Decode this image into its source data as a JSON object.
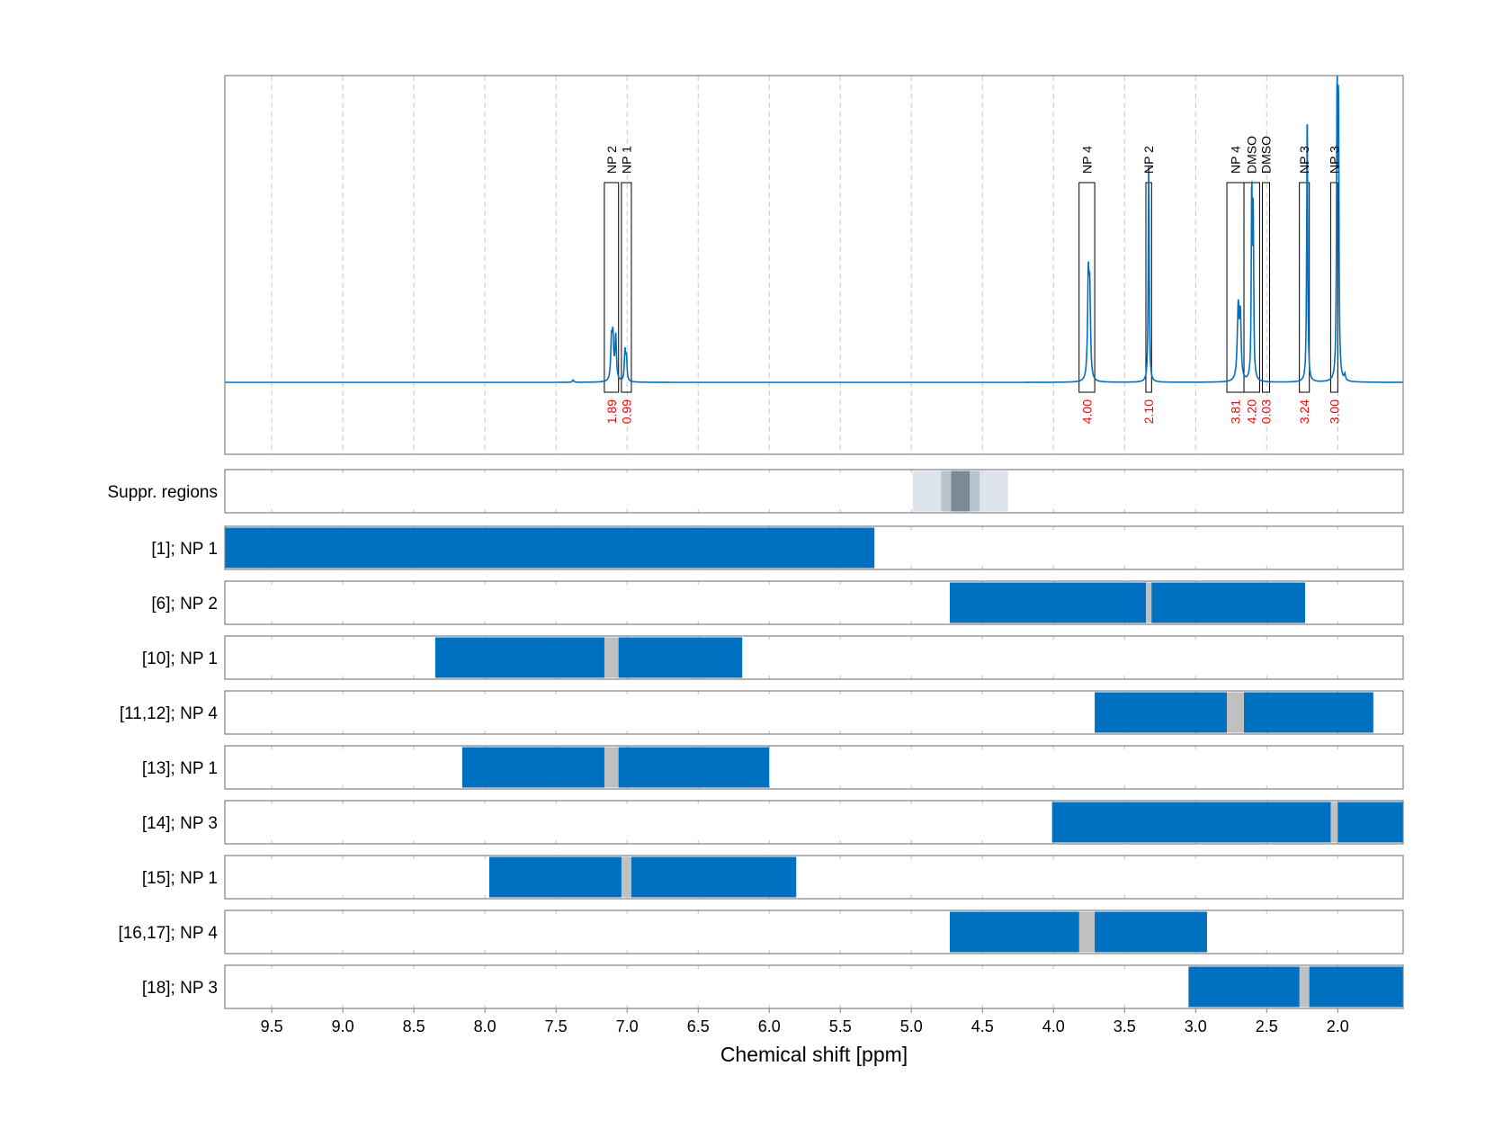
{
  "chart_data": {
    "type": "line",
    "xlabel": "Chemical shift [ppm]",
    "xlim": [
      9.83,
      1.54
    ],
    "x_ticks": [
      9.5,
      9.0,
      8.5,
      8.0,
      7.5,
      7.0,
      6.5,
      6.0,
      5.5,
      5.0,
      4.5,
      4.0,
      3.5,
      3.0,
      2.5,
      2.0
    ],
    "x_tick_labels": [
      "9.5",
      "9.0",
      "8.5",
      "8.0",
      "7.5",
      "7.0",
      "6.5",
      "6.0",
      "5.5",
      "5.0",
      "4.5",
      "4.0",
      "3.5",
      "3.0",
      "2.5",
      "2.0"
    ],
    "grid": true,
    "colors": {
      "spectrum": "#0070c0",
      "window": "#0070c0",
      "excluded": "#c0c0c0",
      "integral_text": "#ff0000",
      "frame": "#808080"
    },
    "spectrum": {
      "baseline": 0,
      "peaks": [
        {
          "x": 7.11,
          "height": 0.13,
          "width": 0.006
        },
        {
          "x": 7.1,
          "height": 0.14,
          "width": 0.006
        },
        {
          "x": 7.08,
          "height": 0.15,
          "width": 0.006
        },
        {
          "x": 7.015,
          "height": 0.1,
          "width": 0.005
        },
        {
          "x": 7.005,
          "height": 0.08,
          "width": 0.005
        },
        {
          "x": 7.38,
          "height": 0.008,
          "width": 0.006
        },
        {
          "x": 3.755,
          "height": 0.33,
          "width": 0.006
        },
        {
          "x": 3.745,
          "height": 0.28,
          "width": 0.006
        },
        {
          "x": 3.33,
          "height": 0.73,
          "width": 0.004
        },
        {
          "x": 2.7,
          "height": 0.25,
          "width": 0.008
        },
        {
          "x": 2.685,
          "height": 0.2,
          "width": 0.006
        },
        {
          "x": 2.605,
          "height": 0.62,
          "width": 0.004
        },
        {
          "x": 2.595,
          "height": 0.55,
          "width": 0.004
        },
        {
          "x": 2.215,
          "height": 0.92,
          "width": 0.004
        },
        {
          "x": 2.005,
          "height": 0.94,
          "width": 0.004
        },
        {
          "x": 1.995,
          "height": 0.9,
          "width": 0.004
        },
        {
          "x": 1.95,
          "height": 0.02,
          "width": 0.005
        }
      ]
    },
    "peak_windows": [
      {
        "label": "NP 2",
        "integral": "1.89",
        "from": 7.16,
        "to": 7.06
      },
      {
        "label": "NP 1",
        "integral": "0.99",
        "from": 7.04,
        "to": 6.97
      },
      {
        "label": "NP 4",
        "integral": "4.00",
        "from": 3.82,
        "to": 3.71
      },
      {
        "label": "NP 2",
        "integral": "2.10",
        "from": 3.35,
        "to": 3.31
      },
      {
        "label": "NP 4",
        "integral": "3.81",
        "from": 2.78,
        "to": 2.66
      },
      {
        "label": "DMSO",
        "integral": "4.20",
        "from": 2.66,
        "to": 2.55
      },
      {
        "label": "DMSO",
        "integral": "0.03",
        "from": 2.53,
        "to": 2.48
      },
      {
        "label": "NP 3",
        "integral": "3.24",
        "from": 2.27,
        "to": 2.2
      },
      {
        "label": "NP 3",
        "integral": "3.00",
        "from": 2.05,
        "to": 2.0
      }
    ],
    "suppressed_regions": {
      "label": "Suppr. regions",
      "bands": [
        {
          "from": 4.99,
          "to": 4.32,
          "shade": "#dde3ea"
        },
        {
          "from": 4.79,
          "to": 4.52,
          "shade": "#b7c4cd"
        },
        {
          "from": 4.72,
          "to": 4.59,
          "shade": "#7a8a97"
        }
      ]
    },
    "rows": [
      {
        "label": "[1]; NP 1",
        "from": 9.83,
        "to": 5.26,
        "gaps": []
      },
      {
        "label": "[6]; NP 2",
        "from": 4.73,
        "to": 2.23,
        "gaps": [
          [
            3.35,
            3.31
          ]
        ]
      },
      {
        "label": "[10]; NP 1",
        "from": 8.35,
        "to": 6.19,
        "gaps": [
          [
            7.16,
            7.06
          ]
        ]
      },
      {
        "label": "[11,12]; NP 4",
        "from": 3.71,
        "to": 1.75,
        "gaps": [
          [
            2.78,
            2.66
          ]
        ]
      },
      {
        "label": "[13]; NP 1",
        "from": 8.16,
        "to": 6.0,
        "gaps": [
          [
            7.16,
            7.06
          ]
        ]
      },
      {
        "label": "[14]; NP 3",
        "from": 4.01,
        "to": 1.54,
        "gaps": [
          [
            2.05,
            2.0
          ]
        ]
      },
      {
        "label": "[15]; NP 1",
        "from": 7.97,
        "to": 5.81,
        "gaps": [
          [
            7.04,
            6.97
          ]
        ]
      },
      {
        "label": "[16,17]; NP 4",
        "from": 4.73,
        "to": 2.92,
        "gaps": [
          [
            3.82,
            3.71
          ]
        ]
      },
      {
        "label": "[18]; NP 3",
        "from": 3.05,
        "to": 1.54,
        "gaps": [
          [
            2.27,
            2.2
          ]
        ]
      }
    ]
  }
}
